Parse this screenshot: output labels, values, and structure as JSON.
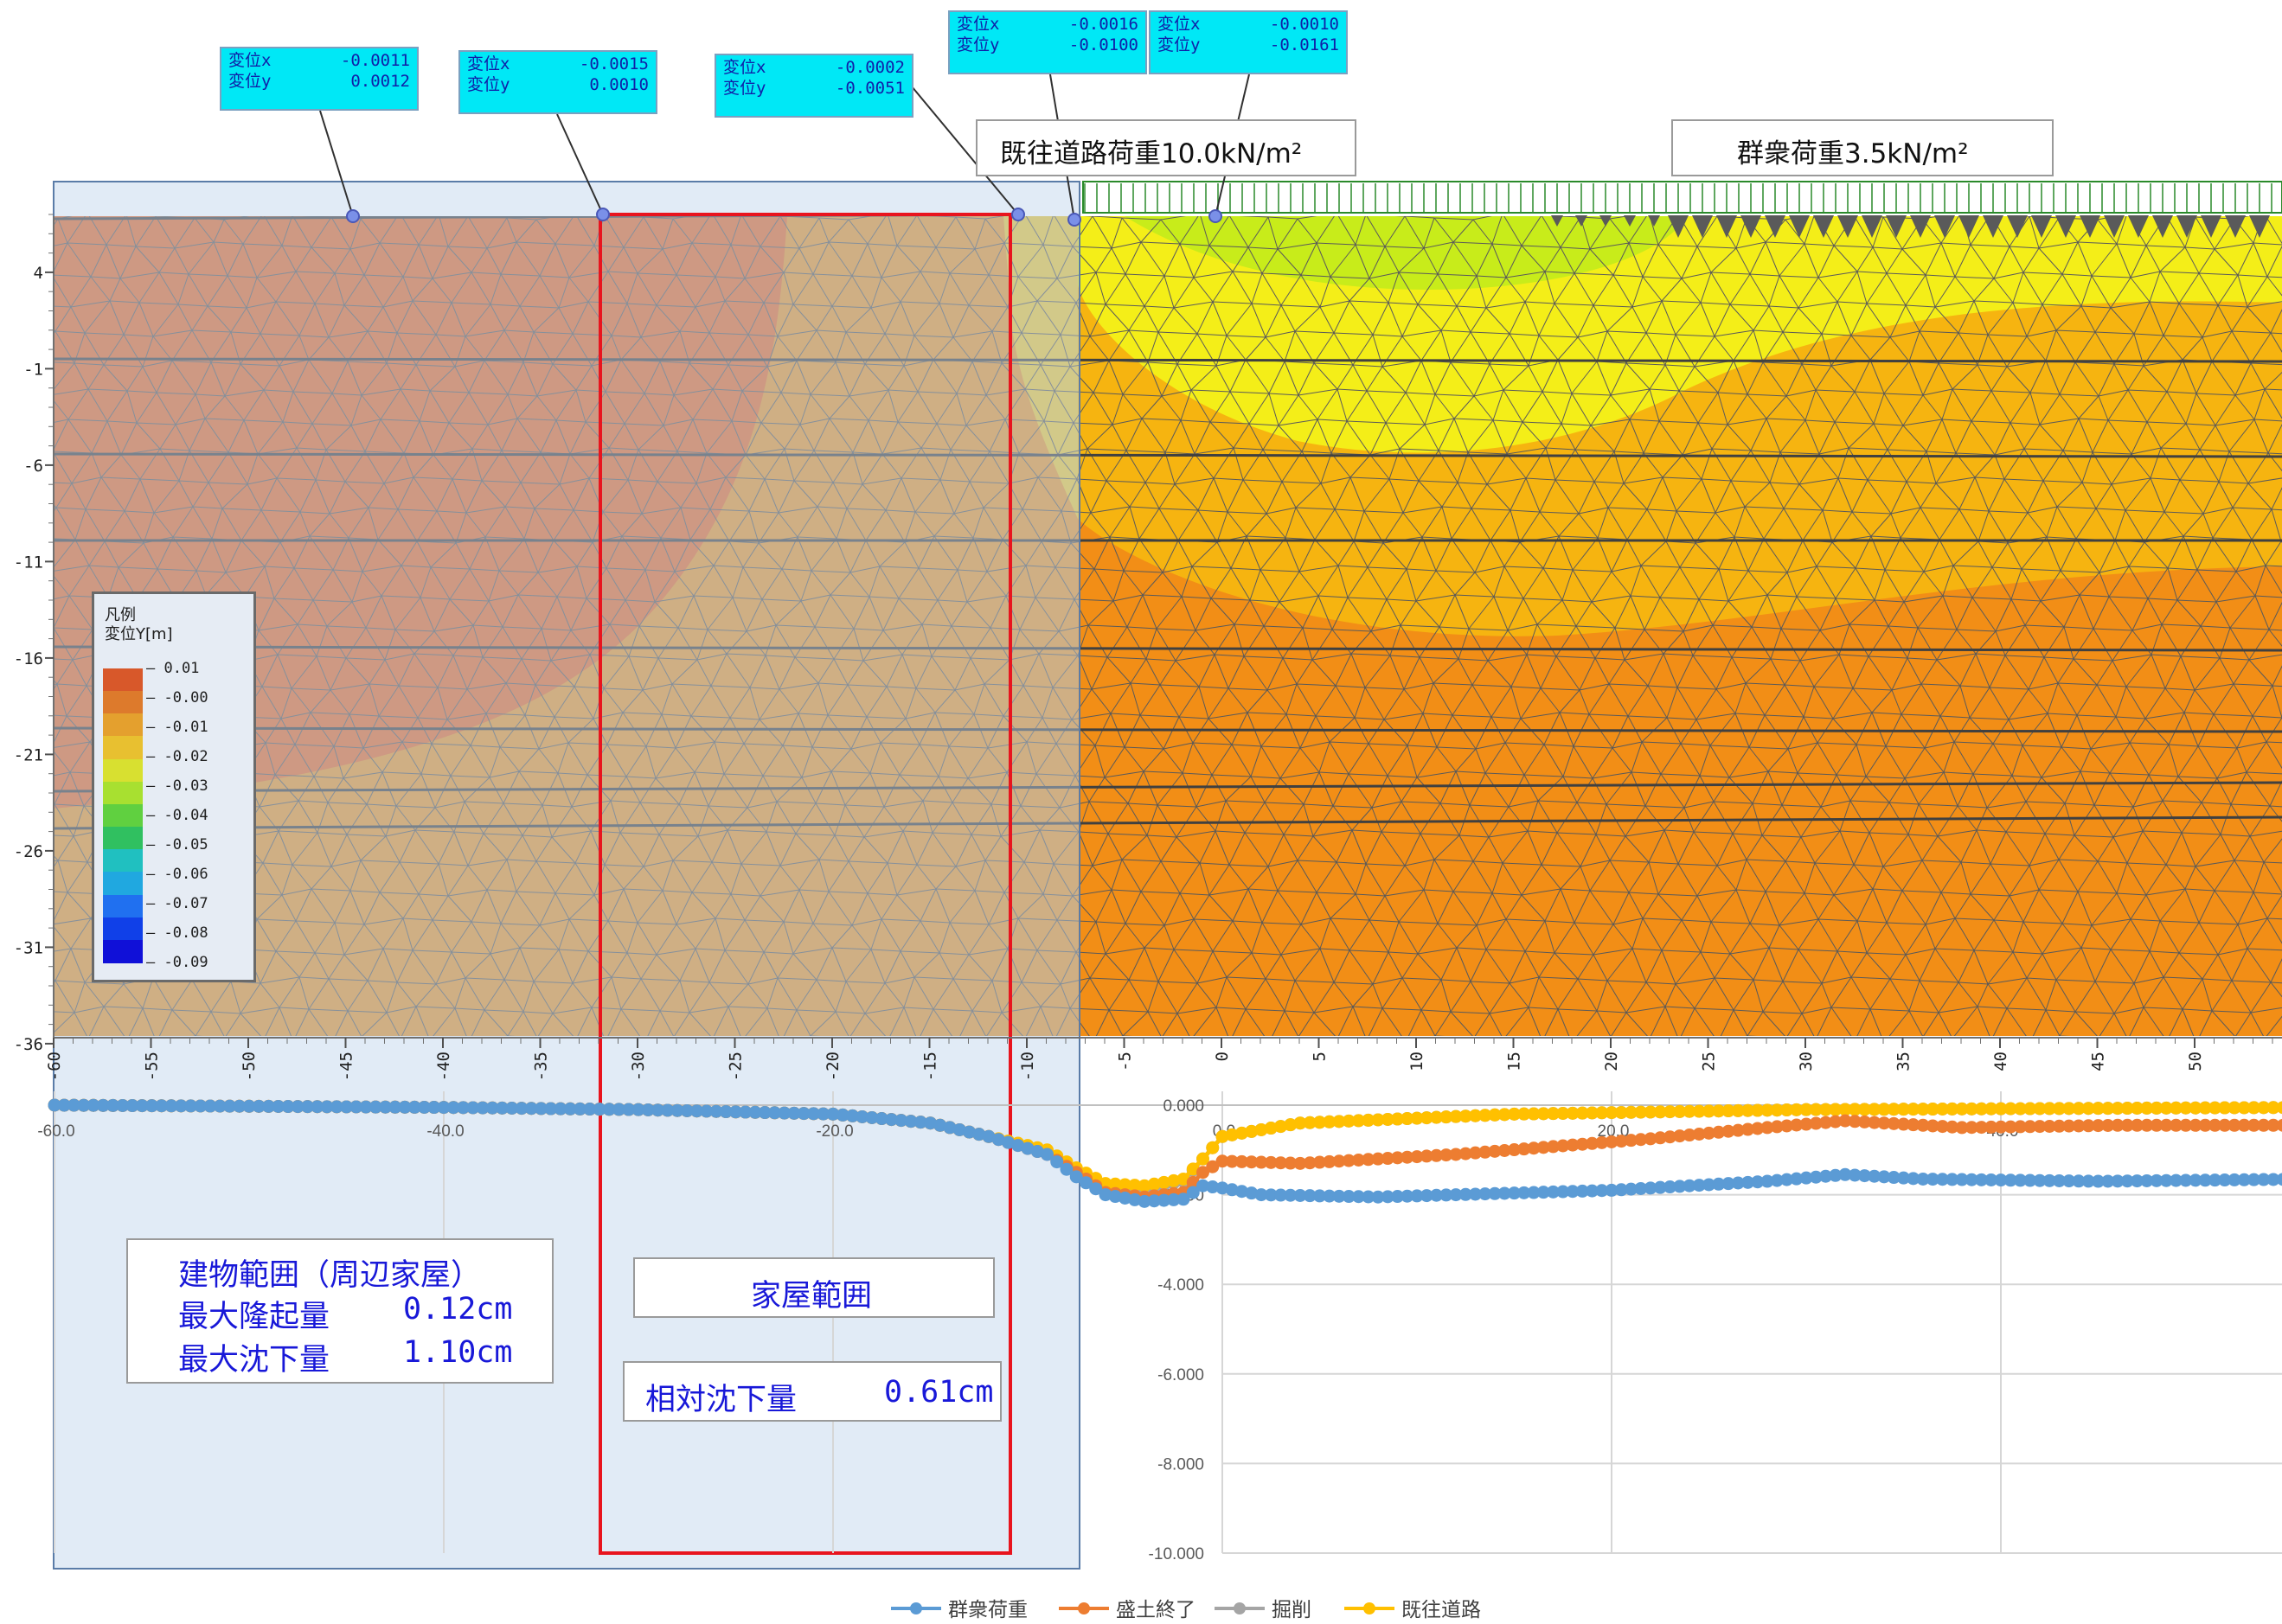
{
  "fem": {
    "y_ticks": [
      "4",
      "-1",
      "-6",
      "-11",
      "-16",
      "-21",
      "-26",
      "-31",
      "-36"
    ],
    "x_ticks": [
      "-60",
      "-55",
      "-50",
      "-45",
      "-40",
      "-35",
      "-30",
      "-25",
      "-20",
      "-15",
      "-10",
      "-5",
      "0",
      "5",
      "10",
      "15",
      "20",
      "25",
      "30",
      "35",
      "40",
      "45",
      "50"
    ],
    "legend": {
      "title1": "凡例",
      "title2": "変位Y[m]",
      "labels": [
        "0.01",
        "-0.00",
        "-0.01",
        "-0.02",
        "-0.03",
        "-0.04",
        "-0.05",
        "-0.06",
        "-0.07",
        "-0.08",
        "-0.09"
      ],
      "colors": [
        "#d8582a",
        "#dd7a2c",
        "#e4a02e",
        "#e8c030",
        "#d8e030",
        "#a8e030",
        "#60d040",
        "#30c060",
        "#20c0c0",
        "#20a8e0",
        "#2070f0",
        "#1040e8",
        "#1010d8"
      ]
    },
    "load_road": "既往道路荷重10.0kN/m²",
    "load_crowd": "群衆荷重3.5kN/m²",
    "callouts": [
      {
        "x_label": "変位x",
        "x_val": "-0.0011",
        "y_label": "変位y",
        "y_val": "0.0012"
      },
      {
        "x_label": "変位x",
        "x_val": "-0.0015",
        "y_label": "変位y",
        "y_val": "0.0010"
      },
      {
        "x_label": "変位x",
        "x_val": "-0.0002",
        "y_label": "変位y",
        "y_val": "-0.0051"
      },
      {
        "x_label": "変位x",
        "x_val": "-0.0016",
        "y_label": "変位y",
        "y_val": "-0.0100"
      },
      {
        "x_label": "変位x",
        "x_val": "-0.0010",
        "y_label": "変位y",
        "y_val": "-0.0161"
      }
    ]
  },
  "annotations": {
    "building_title": "建物範囲（周辺家屋）",
    "max_uplift_label": "最大隆起量",
    "max_uplift_value": "0.12cm",
    "max_settle_label": "最大沈下量",
    "max_settle_value": "1.10cm",
    "house_range": "家屋範囲",
    "relative_settle_label": "相対沈下量",
    "relative_settle_value": "0.61cm"
  },
  "chart_data": {
    "type": "line",
    "xlim": [
      -60,
      56
    ],
    "ylim": [
      -10,
      0
    ],
    "x_tick_labels": [
      "-60.0",
      "-40.0",
      "-20.0",
      "0.0",
      "20.0",
      "40.0"
    ],
    "y_tick_labels": [
      "0.000",
      "-2.000",
      "-4.000",
      "-6.000",
      "-8.000",
      "-10.000"
    ],
    "grid": true,
    "legend_position": "bottom",
    "series": [
      {
        "name": "群衆荷重",
        "color": "#5b9bd5",
        "points": [
          [
            -60,
            0
          ],
          [
            -40,
            -0.05
          ],
          [
            -30,
            -0.1
          ],
          [
            -20,
            -0.2
          ],
          [
            -15,
            -0.4
          ],
          [
            -12,
            -0.7
          ],
          [
            -9,
            -1.1
          ],
          [
            -7.5,
            -1.6
          ],
          [
            -6,
            -2.0
          ],
          [
            -4,
            -2.15
          ],
          [
            -2,
            -2.1
          ],
          [
            -1,
            -1.8
          ],
          [
            0,
            -1.85
          ],
          [
            2,
            -2.0
          ],
          [
            8,
            -2.05
          ],
          [
            20,
            -1.9
          ],
          [
            28,
            -1.7
          ],
          [
            32,
            -1.55
          ],
          [
            36,
            -1.65
          ],
          [
            45,
            -1.7
          ],
          [
            56,
            -1.65
          ]
        ]
      },
      {
        "name": "盛土終了",
        "color": "#ed7d31",
        "points": [
          [
            -60,
            0
          ],
          [
            -40,
            -0.05
          ],
          [
            -30,
            -0.1
          ],
          [
            -20,
            -0.2
          ],
          [
            -15,
            -0.4
          ],
          [
            -12,
            -0.7
          ],
          [
            -9,
            -1.1
          ],
          [
            -7.5,
            -1.5
          ],
          [
            -6,
            -1.95
          ],
          [
            -4,
            -2.05
          ],
          [
            -2,
            -1.95
          ],
          [
            -1,
            -1.5
          ],
          [
            0,
            -1.25
          ],
          [
            4,
            -1.3
          ],
          [
            12,
            -1.1
          ],
          [
            22,
            -0.75
          ],
          [
            28,
            -0.5
          ],
          [
            32,
            -0.35
          ],
          [
            38,
            -0.5
          ],
          [
            46,
            -0.45
          ],
          [
            56,
            -0.45
          ]
        ]
      },
      {
        "name": "掘削",
        "color": "#a5a5a5",
        "points": [
          [
            -60,
            0
          ],
          [
            -40,
            -0.05
          ],
          [
            -30,
            -0.1
          ],
          [
            -20,
            -0.2
          ],
          [
            -15,
            -0.4
          ],
          [
            -12,
            -0.7
          ],
          [
            -9,
            -1.05
          ],
          [
            -7.5,
            -1.45
          ],
          [
            -6,
            -1.8
          ],
          [
            -4,
            -1.85
          ],
          [
            -2,
            -1.7
          ],
          [
            -1,
            -1.2
          ],
          [
            0,
            -0.7
          ],
          [
            4,
            -0.4
          ],
          [
            15,
            -0.2
          ],
          [
            30,
            -0.1
          ],
          [
            56,
            -0.05
          ]
        ]
      },
      {
        "name": "既往道路",
        "color": "#ffc000",
        "points": [
          [
            -60,
            0
          ],
          [
            -40,
            -0.05
          ],
          [
            -30,
            -0.1
          ],
          [
            -20,
            -0.2
          ],
          [
            -15,
            -0.4
          ],
          [
            -12,
            -0.7
          ],
          [
            -9,
            -1.0
          ],
          [
            -7.5,
            -1.4
          ],
          [
            -6,
            -1.75
          ],
          [
            -4,
            -1.8
          ],
          [
            -2,
            -1.65
          ],
          [
            -1,
            -1.2
          ],
          [
            0,
            -0.7
          ],
          [
            4,
            -0.4
          ],
          [
            15,
            -0.2
          ],
          [
            30,
            -0.1
          ],
          [
            56,
            -0.05
          ]
        ]
      }
    ]
  }
}
